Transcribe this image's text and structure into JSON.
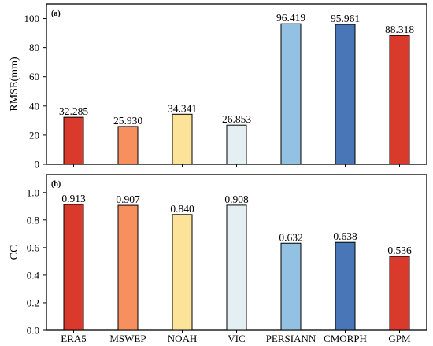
{
  "chart_data": [
    {
      "type": "bar",
      "panel_label": "(a)",
      "ylabel": "RMSE(mm)",
      "ylim": [
        0,
        110
      ],
      "yticks": [
        0,
        20,
        40,
        60,
        80,
        100
      ],
      "ytick_labels": [
        "0",
        "20",
        "40",
        "60",
        "80",
        "100"
      ],
      "categories": [
        "ERA5",
        "MSWEP",
        "NOAH",
        "VIC",
        "PERSIANN",
        "CMORPH",
        "GPM"
      ],
      "values": [
        32.285,
        25.93,
        34.341,
        26.853,
        96.419,
        95.961,
        88.318
      ],
      "value_labels": [
        "32.285",
        "25.930",
        "34.341",
        "26.853",
        "96.419",
        "95.961",
        "88.318"
      ],
      "bar_colors": [
        "#d93a2b",
        "#f78f5e",
        "#fde29a",
        "#e3eff3",
        "#93c1e1",
        "#4876b7",
        "#d93a2b"
      ],
      "grid": false,
      "legend": "none"
    },
    {
      "type": "bar",
      "panel_label": "(b)",
      "ylabel": "CC",
      "ylim": [
        0,
        1.13
      ],
      "yticks": [
        0.0,
        0.2,
        0.4,
        0.6,
        0.8,
        1.0
      ],
      "ytick_labels": [
        "0.0",
        "0.2",
        "0.4",
        "0.6",
        "0.8",
        "1.0"
      ],
      "categories": [
        "ERA5",
        "MSWEP",
        "NOAH",
        "VIC",
        "PERSIANN",
        "CMORPH",
        "GPM"
      ],
      "values": [
        0.913,
        0.907,
        0.84,
        0.908,
        0.632,
        0.638,
        0.536
      ],
      "value_labels": [
        "0.913",
        "0.907",
        "0.840",
        "0.908",
        "0.632",
        "0.638",
        "0.536"
      ],
      "bar_colors": [
        "#d93a2b",
        "#f78f5e",
        "#fde29a",
        "#e3eff3",
        "#93c1e1",
        "#4876b7",
        "#d93a2b"
      ],
      "grid": false,
      "legend": "none"
    }
  ]
}
